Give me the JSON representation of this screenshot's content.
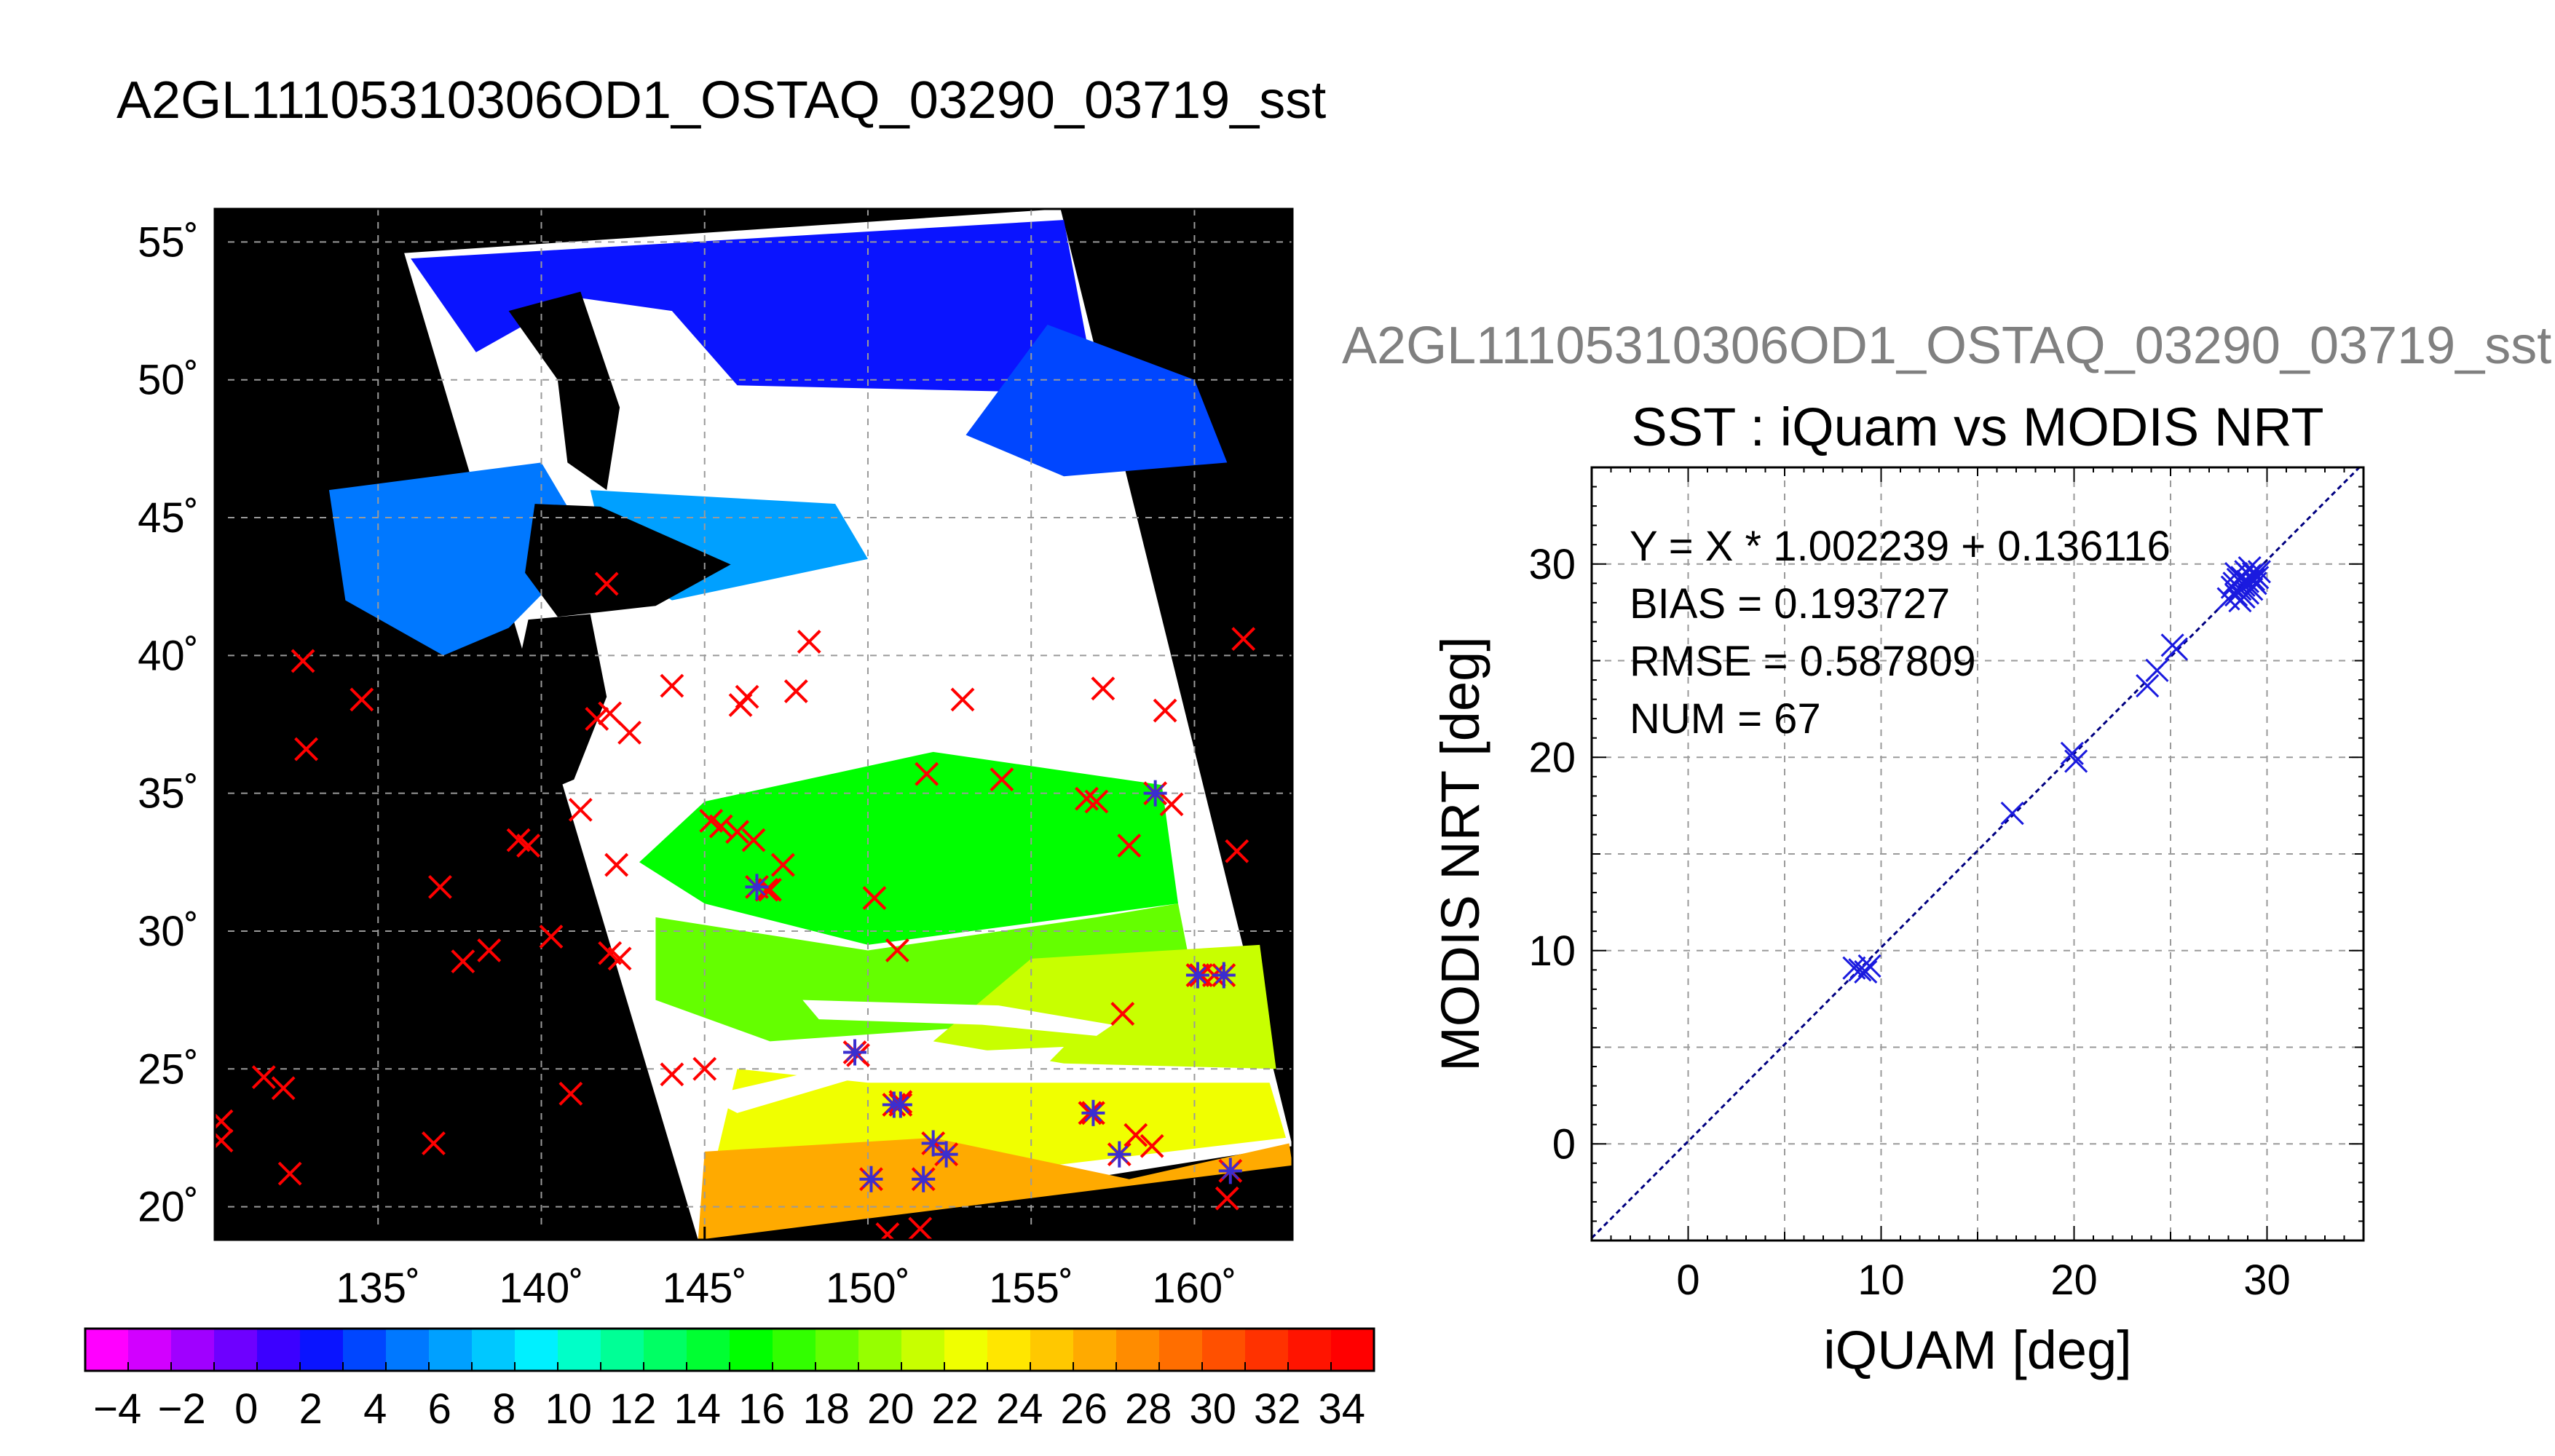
{
  "figure": {
    "main_title": "A2GL11105310306OD1_OSTAQ_03290_03719_sst",
    "right_title": "A2GL11105310306OD1_OSTAQ_03290_03719_sst"
  },
  "colors": {
    "map_background": "#000000",
    "cloud": "#ffffff",
    "insitu_marker": "#ff0000",
    "matchup_marker": "#3a2fd0",
    "scatter_marker": "#1a1adf",
    "fit_line": "#000080",
    "grid": "#9a9a9a"
  },
  "chart_data": [
    {
      "type": "map",
      "title": "A2GL11105310306OD1_OSTAQ_03290_03719_sst",
      "x_ticks": [
        135,
        140,
        145,
        150,
        155,
        160
      ],
      "y_ticks": [
        20,
        25,
        30,
        35,
        40,
        45,
        50,
        55
      ],
      "x_tick_labels": [
        "135˚",
        "140˚",
        "145˚",
        "150˚",
        "155˚",
        "160˚"
      ],
      "y_tick_labels": [
        "20˚",
        "25˚",
        "30˚",
        "35˚",
        "40˚",
        "45˚",
        "50˚",
        "55˚"
      ],
      "xlim": [
        130,
        163
      ],
      "ylim": [
        18.8,
        56.2
      ],
      "grid": true,
      "swath_corners_lonlat": [
        [
          135.8,
          54.6
        ],
        [
          155.9,
          56.2
        ],
        [
          163.0,
          22.2
        ],
        [
          144.8,
          18.8
        ]
      ],
      "insitu_points_red_x": [
        [
          130.2,
          23.1
        ],
        [
          130.2,
          22.4
        ],
        [
          132.7,
          39.8
        ],
        [
          134.5,
          38.4
        ],
        [
          132.8,
          36.6
        ],
        [
          136.9,
          31.6
        ],
        [
          137.6,
          28.9
        ],
        [
          138.4,
          29.3
        ],
        [
          139.3,
          33.3
        ],
        [
          139.6,
          33.1
        ],
        [
          140.3,
          29.8
        ],
        [
          140.9,
          24.1
        ],
        [
          141.2,
          34.4
        ],
        [
          142.0,
          42.6
        ],
        [
          141.7,
          37.7
        ],
        [
          142.1,
          37.9
        ],
        [
          142.7,
          37.2
        ],
        [
          142.3,
          32.4
        ],
        [
          142.1,
          29.2
        ],
        [
          142.4,
          29.0
        ],
        [
          144.0,
          38.9
        ],
        [
          144.0,
          24.8
        ],
        [
          145.0,
          25.0
        ],
        [
          145.2,
          34.0
        ],
        [
          145.5,
          33.8
        ],
        [
          146.0,
          33.6
        ],
        [
          146.1,
          38.2
        ],
        [
          146.3,
          38.5
        ],
        [
          146.5,
          33.3
        ],
        [
          147.4,
          32.4
        ],
        [
          147.8,
          38.7
        ],
        [
          148.2,
          40.5
        ],
        [
          146.9,
          31.5
        ],
        [
          149.7,
          25.5
        ],
        [
          150.2,
          31.2
        ],
        [
          150.9,
          29.3
        ],
        [
          151.0,
          23.8
        ],
        [
          151.8,
          35.7
        ],
        [
          152.9,
          38.4
        ],
        [
          154.1,
          35.5
        ],
        [
          156.7,
          34.8
        ],
        [
          157.0,
          34.7
        ],
        [
          157.2,
          38.8
        ],
        [
          156.8,
          23.4
        ],
        [
          157.8,
          27.0
        ],
        [
          158.2,
          22.6
        ],
        [
          158.0,
          33.1
        ],
        [
          158.7,
          22.2
        ],
        [
          159.1,
          38.0
        ],
        [
          159.3,
          34.6
        ],
        [
          160.2,
          28.4
        ],
        [
          160.6,
          28.4
        ],
        [
          161.0,
          20.3
        ],
        [
          161.5,
          40.6
        ],
        [
          161.3,
          32.9
        ],
        [
          131.5,
          24.7
        ],
        [
          132.1,
          24.3
        ],
        [
          132.3,
          21.2
        ],
        [
          136.7,
          22.3
        ],
        [
          151.6,
          19.2
        ],
        [
          150.6,
          19.0
        ],
        [
          147.0,
          31.5
        ]
      ],
      "matchup_points_blue_star": [
        [
          146.6,
          31.6
        ],
        [
          149.6,
          25.6
        ],
        [
          150.1,
          21.0
        ],
        [
          150.8,
          23.7
        ],
        [
          151.0,
          23.7
        ],
        [
          151.7,
          21.0
        ],
        [
          152.0,
          22.3
        ],
        [
          152.4,
          21.9
        ],
        [
          156.9,
          23.4
        ],
        [
          157.7,
          21.9
        ],
        [
          158.8,
          35.0
        ],
        [
          160.1,
          28.4
        ],
        [
          160.9,
          28.4
        ],
        [
          161.1,
          21.3
        ]
      ]
    },
    {
      "type": "colorbar",
      "vmin": -5,
      "vmax": 35,
      "tick_values": [
        -4,
        -2,
        0,
        2,
        4,
        6,
        8,
        10,
        12,
        14,
        16,
        18,
        20,
        22,
        24,
        26,
        28,
        30,
        32,
        34
      ],
      "tick_labels": [
        "−4",
        "−2",
        "0",
        "2",
        "4",
        "6",
        "8",
        "10",
        "12",
        "14",
        "16",
        "18",
        "20",
        "22",
        "24",
        "26",
        "28",
        "30",
        "32",
        "34"
      ],
      "colors": [
        "#ff00ff",
        "#d200ff",
        "#a000ff",
        "#6e00ff",
        "#3c00ff",
        "#0a14ff",
        "#0046ff",
        "#0078ff",
        "#00a0ff",
        "#00c8ff",
        "#00f0ff",
        "#00ffc8",
        "#00ff96",
        "#00ff64",
        "#00ff32",
        "#00ff00",
        "#32ff00",
        "#64ff00",
        "#96ff00",
        "#c8ff00",
        "#f0ff00",
        "#ffe600",
        "#ffc800",
        "#ffaa00",
        "#ff8c00",
        "#ff6e00",
        "#ff5000",
        "#ff3200",
        "#ff1400",
        "#ff0000"
      ]
    },
    {
      "type": "scatter",
      "title": "SST : iQuam vs MODIS NRT",
      "xlabel": "iQUAM [deg]",
      "ylabel": "MODIS NRT [deg]",
      "xlim": [
        -5,
        35
      ],
      "ylim": [
        -5,
        35
      ],
      "x_ticks": [
        0,
        10,
        20,
        30
      ],
      "y_ticks": [
        0,
        10,
        20,
        30
      ],
      "grid": true,
      "stats": [
        "Y = X * 1.002239 + 0.136116",
        "BIAS = 0.193727",
        "RMSE = 0.587809",
        "NUM = 67"
      ],
      "fit": {
        "slope": 1.002239,
        "intercept": 0.136116
      },
      "points": [
        [
          8.6,
          9.1
        ],
        [
          8.9,
          9.0
        ],
        [
          9.2,
          8.9
        ],
        [
          9.4,
          9.2
        ],
        [
          16.8,
          17.1
        ],
        [
          19.9,
          20.2
        ],
        [
          20.1,
          19.8
        ],
        [
          23.8,
          23.7
        ],
        [
          24.3,
          24.5
        ],
        [
          25.1,
          25.8
        ],
        [
          25.3,
          25.6
        ],
        [
          28.0,
          28.2
        ],
        [
          28.2,
          28.8
        ],
        [
          28.3,
          29.0
        ],
        [
          28.4,
          28.4
        ],
        [
          28.5,
          29.2
        ],
        [
          28.6,
          28.7
        ],
        [
          28.6,
          28.1
        ],
        [
          28.7,
          29.3
        ],
        [
          28.8,
          28.9
        ],
        [
          28.9,
          29.6
        ],
        [
          29.0,
          28.5
        ],
        [
          29.0,
          29.1
        ],
        [
          29.1,
          29.4
        ],
        [
          29.2,
          28.7
        ],
        [
          29.3,
          29.5
        ],
        [
          29.4,
          29.0
        ],
        [
          29.5,
          29.3
        ],
        [
          29.6,
          29.6
        ],
        [
          28.4,
          29.5
        ],
        [
          28.8,
          28.3
        ],
        [
          29.1,
          29.8
        ],
        [
          28.9,
          29.0
        ],
        [
          29.3,
          29.2
        ]
      ]
    }
  ]
}
